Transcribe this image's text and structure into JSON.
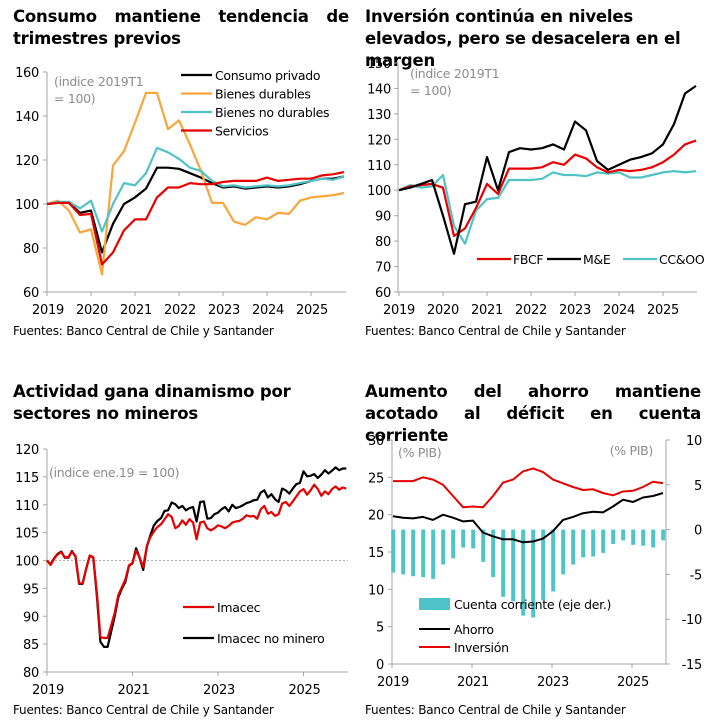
{
  "colors": {
    "black": "#000000",
    "orange": "#f9a53a",
    "teal": "#4fc3c8",
    "red": "#e60000",
    "axis": "#a6a6a6",
    "note": "#8c8c8c"
  },
  "source_text": "Fuentes: Banco Central de Chile y Santander",
  "chart_data": [
    {
      "id": "consumo",
      "type": "line",
      "title": "Consumo mantiene tendencia de trimestres previos",
      "note": [
        "(indice 2019T1",
        "= 100)"
      ],
      "xlabel": "",
      "ylabel": "",
      "frequency": "quarterly",
      "x_start": "2019Q1",
      "x_ticks": [
        "2019",
        "2020",
        "2021",
        "2022",
        "2023",
        "2024",
        "2025"
      ],
      "ylim": [
        60,
        160
      ],
      "y_ticks": [
        60,
        80,
        100,
        120,
        140,
        160
      ],
      "legend_position": "top-right",
      "series": [
        {
          "name": "Consumo privado",
          "color": "#000000",
          "values": [
            100,
            100.5,
            100.5,
            96,
            97,
            78,
            91,
            100,
            103,
            107,
            116.5,
            116.5,
            116,
            114,
            112,
            109.5,
            107.5,
            108,
            107,
            107.5,
            108,
            107.5,
            108,
            109,
            110.5,
            111.5,
            111.5,
            112.5
          ]
        },
        {
          "name": "Bienes durables",
          "color": "#f9a53a",
          "values": [
            100,
            101.5,
            97,
            87,
            88.5,
            68,
            117.5,
            124,
            137,
            150.5,
            150.5,
            134,
            138,
            127,
            115,
            100.5,
            100.5,
            92,
            90.5,
            94,
            93,
            96,
            95.5,
            101.5,
            103,
            103.5,
            104,
            105
          ]
        },
        {
          "name": "Bienes no durables",
          "color": "#4fc3c8",
          "values": [
            100,
            101,
            101,
            98,
            101.5,
            87.5,
            100,
            109.5,
            108.5,
            114,
            125.5,
            123.5,
            120.5,
            116.5,
            115,
            110.5,
            108,
            108.5,
            107.5,
            108,
            108.5,
            108,
            108.5,
            109.5,
            110.5,
            111.5,
            111,
            112.5
          ]
        },
        {
          "name": "Servicios",
          "color": "#e60000",
          "values": [
            100,
            100.5,
            100.5,
            95,
            95.5,
            72.5,
            78,
            88,
            93,
            93,
            103,
            107.5,
            107.5,
            109.5,
            109,
            109,
            110,
            110.5,
            110.5,
            110.5,
            112,
            110.5,
            111,
            111.5,
            111.5,
            113,
            113.5,
            114.5
          ]
        }
      ]
    },
    {
      "id": "inversion",
      "type": "line",
      "title": "Inversión continúa en niveles elevados, pero se desacelera en el margen",
      "note": [
        "(indice 2019T1",
        "= 100)"
      ],
      "xlabel": "",
      "ylabel": "",
      "frequency": "quarterly",
      "x_start": "2019Q1",
      "x_ticks": [
        "2019",
        "2020",
        "2021",
        "2022",
        "2023",
        "2024",
        "2025"
      ],
      "ylim": [
        60,
        150
      ],
      "y_ticks": [
        60,
        70,
        80,
        90,
        100,
        110,
        120,
        130,
        140,
        150
      ],
      "legend_position": "bottom-right",
      "series": [
        {
          "name": "FBCF",
          "color": "#e60000",
          "values": [
            100,
            101.5,
            102,
            102.5,
            101,
            82,
            85,
            93,
            102.5,
            98.5,
            108.5,
            108.5,
            108.5,
            109,
            111,
            110,
            114,
            112.5,
            109,
            107,
            108,
            107.5,
            108,
            109,
            111,
            114,
            118,
            119.5
          ]
        },
        {
          "name": "M&E",
          "color": "#000000",
          "values": [
            100,
            101,
            102.5,
            104,
            90,
            75,
            94.5,
            95.5,
            113,
            100,
            115,
            116.5,
            116,
            116.5,
            118,
            116,
            127,
            123.5,
            111.5,
            108,
            110,
            112,
            113,
            114.5,
            118,
            126,
            138,
            141
          ]
        },
        {
          "name": "CC&OO",
          "color": "#4fc3c8",
          "values": [
            100,
            102,
            101,
            101.5,
            106,
            86,
            79,
            92,
            96.5,
            97,
            104,
            104,
            104,
            104.5,
            107,
            106,
            106,
            105.5,
            107,
            106.5,
            107,
            105,
            105,
            106,
            107,
            107.5,
            107,
            107.5
          ]
        }
      ]
    },
    {
      "id": "actividad",
      "type": "line",
      "title": "Actividad gana dinamismo por sectores no mineros",
      "note": [
        "(indice ene.19 = 100)"
      ],
      "xlabel": "",
      "ylabel": "",
      "frequency": "monthly",
      "x_start": "2019-01",
      "x_ticks": [
        "2019",
        "2021",
        "2023",
        "2025"
      ],
      "ylim": [
        80,
        120
      ],
      "y_ticks": [
        80,
        85,
        90,
        95,
        100,
        105,
        110,
        115,
        120
      ],
      "reference_line": 100,
      "legend_position": "center-right",
      "series": [
        {
          "name": "Imacec",
          "color": "#e60000",
          "values": [
            100,
            99.2,
            100.3,
            101.1,
            101.5,
            100.6,
            100.6,
            101.6,
            100.8,
            95.9,
            95.9,
            98.6,
            100.9,
            100.6,
            94.2,
            86.3,
            86.1,
            86.1,
            88.3,
            90.6,
            93.8,
            95.2,
            96.6,
            99.1,
            99.6,
            101.8,
            100.5,
            98.8,
            102.6,
            104.2,
            105.2,
            106.0,
            106.5,
            107.4,
            108.3,
            107.8,
            105.8,
            106.2,
            107.2,
            106.4,
            107.4,
            106.8,
            103.8,
            106.8,
            107.0,
            105.8,
            105.4,
            105.8,
            106.3,
            106.1,
            105.8,
            106.2,
            106.8,
            107.0,
            107.1,
            107.5,
            108.1,
            107.9,
            108.0,
            107.5,
            109.2,
            109.8,
            108.4,
            108.7,
            108.0,
            108.3,
            110.2,
            110.5,
            109.8,
            110.6,
            111.5,
            112.4,
            112.8,
            111.8,
            112.6,
            113.6,
            112.8,
            111.6,
            112.4,
            111.9,
            112.8,
            113.3,
            112.7,
            113.1,
            112.9
          ]
        },
        {
          "name": "Imacec no minero",
          "color": "#000000",
          "values": [
            100,
            99.3,
            100.4,
            101.2,
            101.6,
            100.5,
            100.5,
            101.7,
            100.7,
            95.8,
            95.8,
            98.5,
            100.9,
            100.5,
            93.6,
            85.4,
            84.5,
            84.5,
            87.2,
            90.0,
            93.4,
            94.9,
            96.2,
            99.0,
            99.5,
            102.2,
            100.5,
            98.3,
            102.4,
            104.5,
            106.3,
            107.1,
            107.6,
            108.9,
            109.0,
            110.4,
            110.1,
            109.4,
            109.8,
            109.0,
            109.4,
            109.6,
            107.0,
            110.5,
            110.6,
            107.5,
            107.6,
            108.3,
            108.6,
            109.2,
            109.6,
            108.8,
            110.0,
            109.4,
            109.6,
            109.9,
            110.3,
            110.5,
            110.8,
            110.9,
            112.2,
            112.6,
            111.3,
            111.9,
            111.0,
            110.5,
            112.9,
            112.6,
            112.0,
            112.9,
            113.7,
            113.9,
            116.0,
            115.1,
            115.2,
            115.5,
            114.8,
            115.4,
            116.2,
            115.6,
            116.1,
            116.7,
            116.2,
            116.5,
            116.5
          ]
        }
      ]
    },
    {
      "id": "ahorro",
      "type": "bar+line",
      "title": "Aumento del ahorro mantiene acotado al déficit en cuenta corriente",
      "note_left": "(% PIB)",
      "note_right": "(% PIB)",
      "xlabel": "",
      "ylabel": "",
      "frequency": "quarterly",
      "x_start": "2019Q1",
      "x_ticks": [
        "2019",
        "2021",
        "2023",
        "2025"
      ],
      "ylim": [
        0,
        30
      ],
      "y_ticks": [
        0,
        5,
        10,
        15,
        20,
        25,
        30
      ],
      "y2lim": [
        -15,
        10
      ],
      "y2_ticks": [
        -15,
        -10,
        -5,
        0,
        5,
        10
      ],
      "legend_position": "bottom-left",
      "bars": {
        "name": "Cuenta corriente (eje der.)",
        "color": "#4fc3c8",
        "axis": "right",
        "values": [
          -4.8,
          -5.0,
          -5.2,
          -5.3,
          -5.5,
          -3.9,
          -3.2,
          -2.0,
          -2.1,
          -3.6,
          -5.3,
          -7.5,
          -8.0,
          -9.6,
          -9.8,
          -7.9,
          -6.9,
          -5.0,
          -3.9,
          -3.1,
          -3.0,
          -2.6,
          -1.6,
          -1.2,
          -1.7,
          -1.8,
          -2.0,
          -1.2
        ]
      },
      "series": [
        {
          "name": "Ahorro",
          "color": "#000000",
          "axis": "left",
          "values": [
            19.8,
            19.6,
            19.5,
            19.7,
            19.3,
            20.0,
            19.6,
            19.1,
            19.2,
            17.6,
            17.1,
            16.7,
            16.7,
            16.3,
            16.4,
            16.8,
            17.8,
            19.3,
            19.7,
            20.2,
            20.4,
            20.3,
            21.1,
            22.0,
            21.7,
            22.3,
            22.5,
            22.9
          ]
        },
        {
          "name": "Inversión",
          "color": "#e60000",
          "axis": "left",
          "values": [
            24.5,
            24.5,
            24.5,
            25.0,
            24.7,
            24.0,
            22.5,
            21.0,
            21.1,
            21.0,
            22.5,
            24.3,
            24.7,
            25.8,
            26.2,
            25.7,
            24.7,
            24.2,
            23.7,
            23.3,
            23.4,
            22.9,
            22.6,
            23.1,
            23.2,
            23.7,
            24.4,
            24.2
          ]
        }
      ]
    }
  ]
}
